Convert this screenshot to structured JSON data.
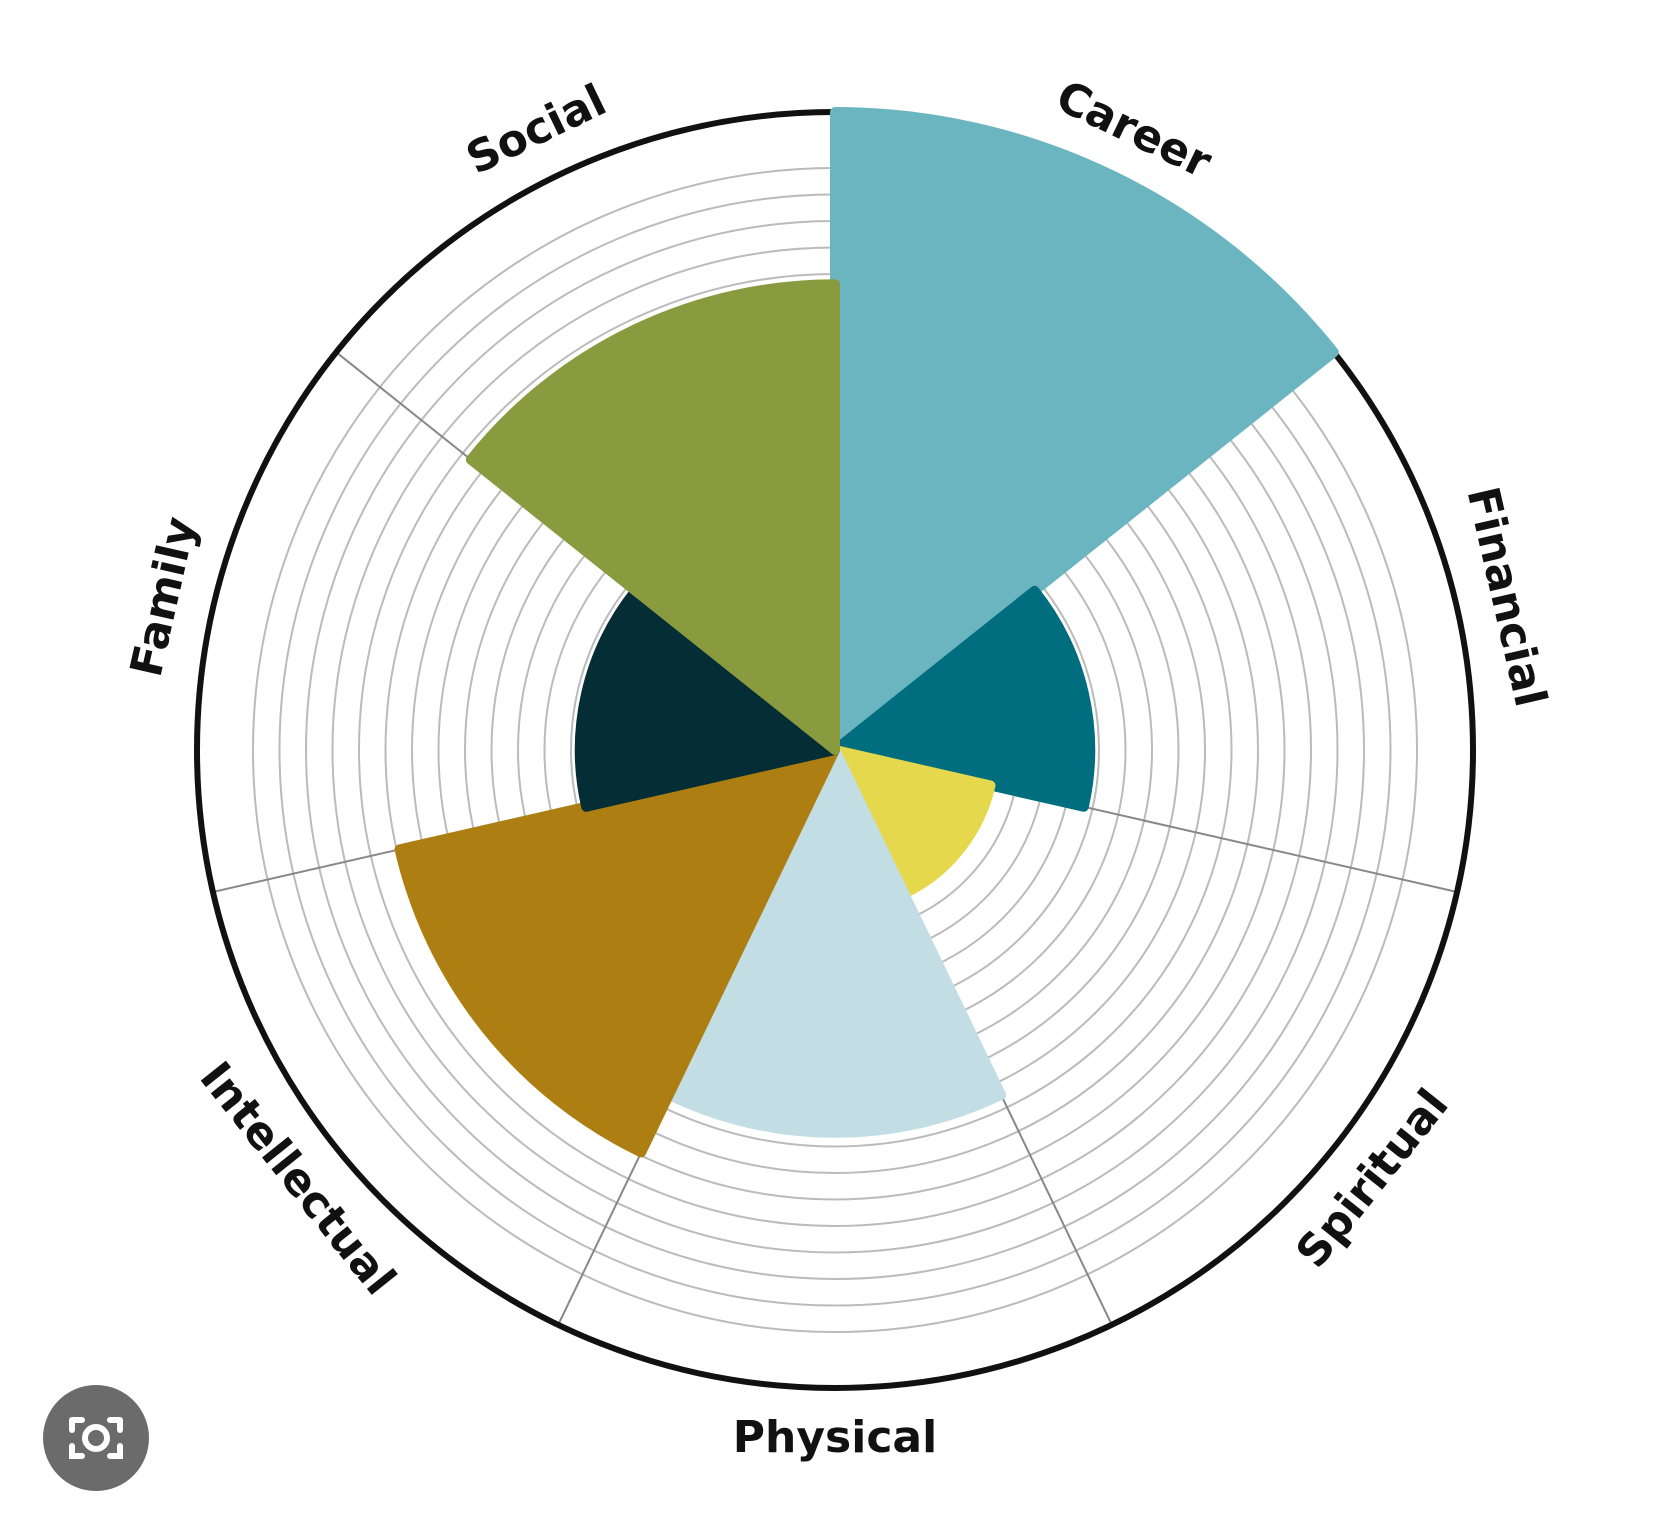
{
  "chart_data": {
    "type": "polar_area",
    "categories": [
      "Career",
      "Financial",
      "Spiritual",
      "Physical",
      "Intellectual",
      "Family",
      "Social"
    ],
    "values": [
      10,
      4,
      2.5,
      6,
      7,
      4,
      7.3
    ],
    "colors": [
      "#6bb5c1",
      "#006e7e",
      "#e6d84c",
      "#c3dde5",
      "#ad7f12",
      "#042d35",
      "#8a9a3f"
    ],
    "rlim": [
      0,
      10
    ]
  }
}
